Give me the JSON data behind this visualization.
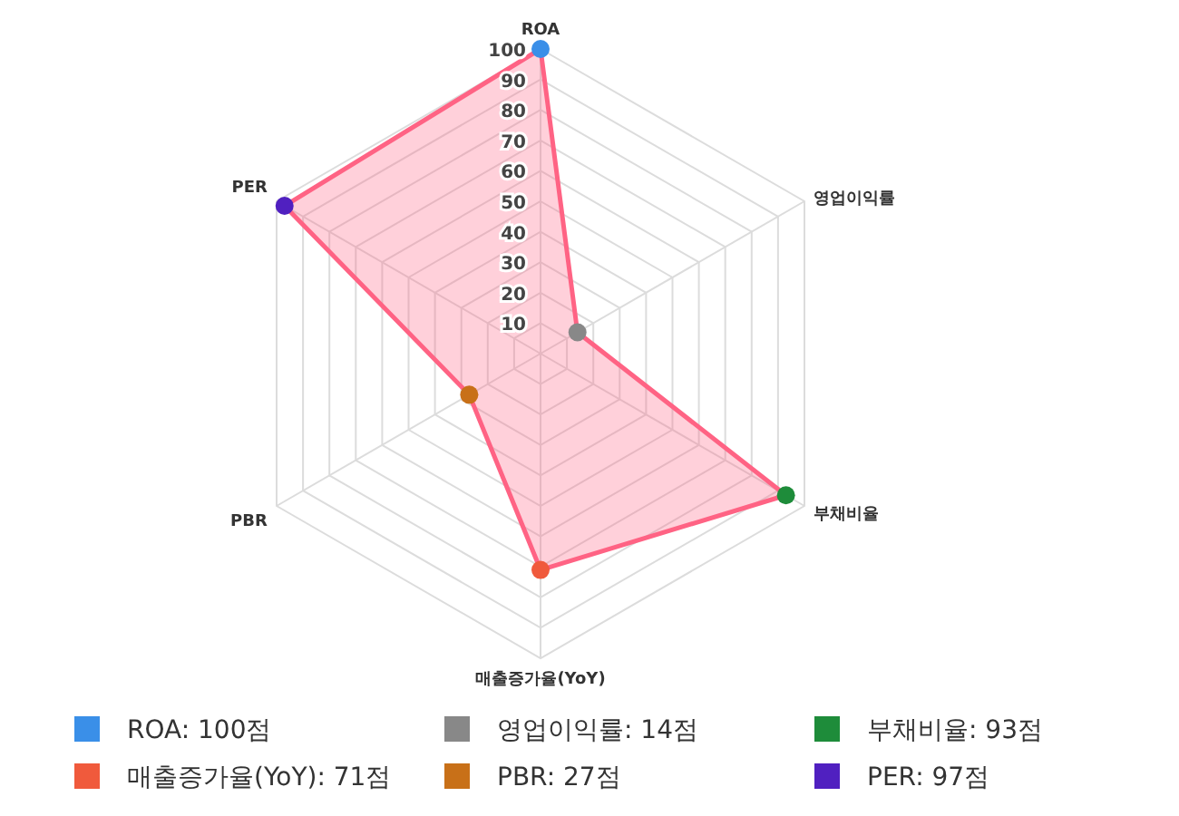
{
  "chart_data": {
    "type": "radar",
    "categories": [
      "ROA",
      "영업이익률",
      "부채비율",
      "매출증가율(YoY)",
      "PBR",
      "PER"
    ],
    "series": [
      {
        "color": "#ff6384",
        "values": [
          100,
          14,
          93,
          71,
          27,
          97
        ],
        "colors": [
          "#3a8fe8",
          "#888888",
          "#1e8c3a",
          "#f05a3c",
          "#c87018",
          "#5020c0"
        ]
      }
    ],
    "ylim": [
      0,
      100
    ],
    "yticks": [
      10,
      20,
      30,
      40,
      50,
      60,
      70,
      80,
      90,
      100
    ],
    "grid": true,
    "marker": "circle",
    "annotations": [
      "ROA: 100점",
      "영업이익률: 14점",
      "부채비율: 93점",
      "매출증가율(YoY): 71점",
      "PBR: 27점",
      "PER: 97점"
    ]
  }
}
